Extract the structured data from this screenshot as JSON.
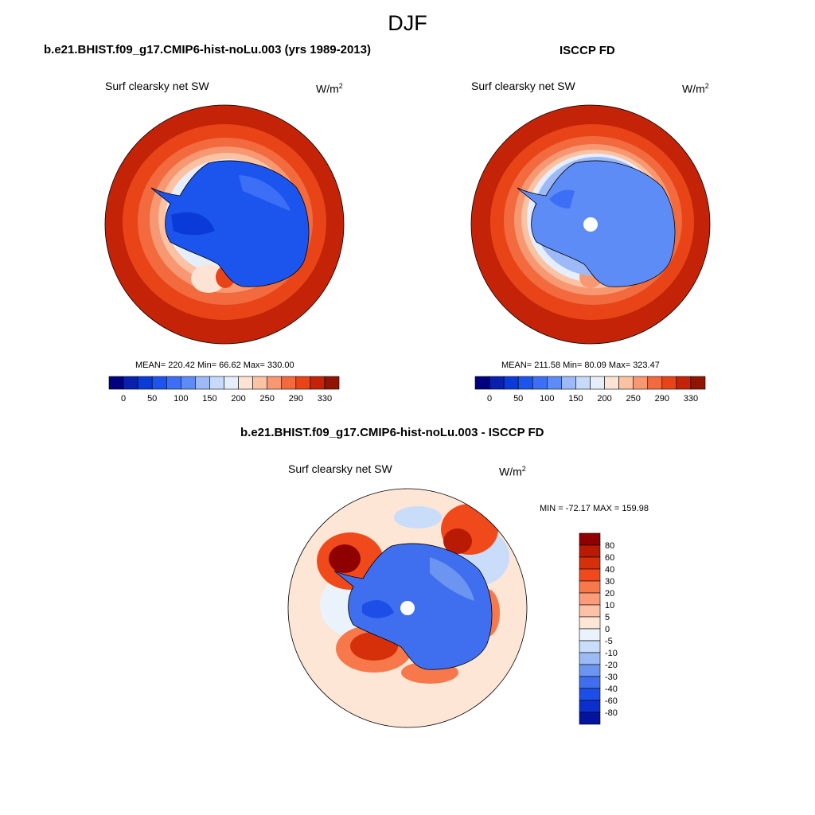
{
  "title": "DJF",
  "panels": [
    {
      "title": "b.e21.BHIST.f09_g17.CMIP6-hist-noLu.003 (yrs 1989-2013)",
      "variable": "Surf clearsky net SW",
      "units_base": "W/m",
      "units_exp": "2",
      "stats": "MEAN= 220.42  Min=  66.62  Max= 330.00"
    },
    {
      "title": "ISCCP FD",
      "variable": "Surf clearsky net SW",
      "units_base": "W/m",
      "units_exp": "2",
      "stats": "MEAN= 211.58  Min=  80.09  Max= 323.47"
    },
    {
      "title": "b.e21.BHIST.f09_g17.CMIP6-hist-noLu.003 - ISCCP FD",
      "variable": "Surf clearsky net SW",
      "units_base": "W/m",
      "units_exp": "2",
      "stats": "MIN = -72.17 MAX = 159.98"
    }
  ],
  "chart_data": [
    {
      "type": "heatmap",
      "projection": "south polar stereographic",
      "region": "Antarctica",
      "title": "b.e21.BHIST.f09_g17.CMIP6-hist-noLu.003 (yrs 1989-2013)",
      "variable": "Surf clearsky net SW",
      "units": "W/m2",
      "mean": 220.42,
      "min": 66.62,
      "max": 330.0,
      "colorbar": {
        "orientation": "horizontal",
        "levels": [
          0,
          25,
          50,
          75,
          100,
          125,
          150,
          175,
          200,
          225,
          250,
          275,
          290,
          310,
          330
        ],
        "tick_labels": [
          "0",
          "50",
          "100",
          "150",
          "200",
          "250",
          "290",
          "330"
        ],
        "colors": [
          "#00007f",
          "#0a1fae",
          "#0a3bd9",
          "#1c55ee",
          "#3c6ff5",
          "#5e8cf6",
          "#9db9f7",
          "#c8dafa",
          "#e6eefb",
          "#fde3d4",
          "#fbc2a3",
          "#f89872",
          "#f26a3e",
          "#e84418",
          "#c42307",
          "#8f1502"
        ]
      }
    },
    {
      "type": "heatmap",
      "projection": "south polar stereographic",
      "region": "Antarctica",
      "title": "ISCCP FD",
      "variable": "Surf clearsky net SW",
      "units": "W/m2",
      "mean": 211.58,
      "min": 80.09,
      "max": 323.47,
      "colorbar": {
        "orientation": "horizontal",
        "levels": [
          0,
          25,
          50,
          75,
          100,
          125,
          150,
          175,
          200,
          225,
          250,
          275,
          290,
          310,
          330
        ],
        "tick_labels": [
          "0",
          "50",
          "100",
          "150",
          "200",
          "250",
          "290",
          "330"
        ],
        "colors": [
          "#00007f",
          "#0a1fae",
          "#0a3bd9",
          "#1c55ee",
          "#3c6ff5",
          "#5e8cf6",
          "#9db9f7",
          "#c8dafa",
          "#e6eefb",
          "#fde3d4",
          "#fbc2a3",
          "#f89872",
          "#f26a3e",
          "#e84418",
          "#c42307",
          "#8f1502"
        ]
      }
    },
    {
      "type": "heatmap",
      "projection": "south polar stereographic",
      "region": "Antarctica",
      "title": "b.e21.BHIST.f09_g17.CMIP6-hist-noLu.003 - ISCCP FD",
      "variable": "Surf clearsky net SW",
      "units": "W/m2",
      "min": -72.17,
      "max": 159.98,
      "colorbar": {
        "orientation": "vertical",
        "tick_labels": [
          "80",
          "60",
          "40",
          "30",
          "20",
          "10",
          "5",
          "0",
          "-5",
          "-10",
          "-20",
          "-30",
          "-40",
          "-60",
          "-80"
        ],
        "colors": [
          "#8f0000",
          "#b81a04",
          "#d6300a",
          "#f04a1c",
          "#f7784b",
          "#fa9c79",
          "#fcc1a6",
          "#fde6d6",
          "#eaf3fc",
          "#c9dcfa",
          "#9cbaf4",
          "#6b95f0",
          "#3f6fee",
          "#1d4fe8",
          "#0a2fcc",
          "#04149e"
        ]
      }
    }
  ]
}
